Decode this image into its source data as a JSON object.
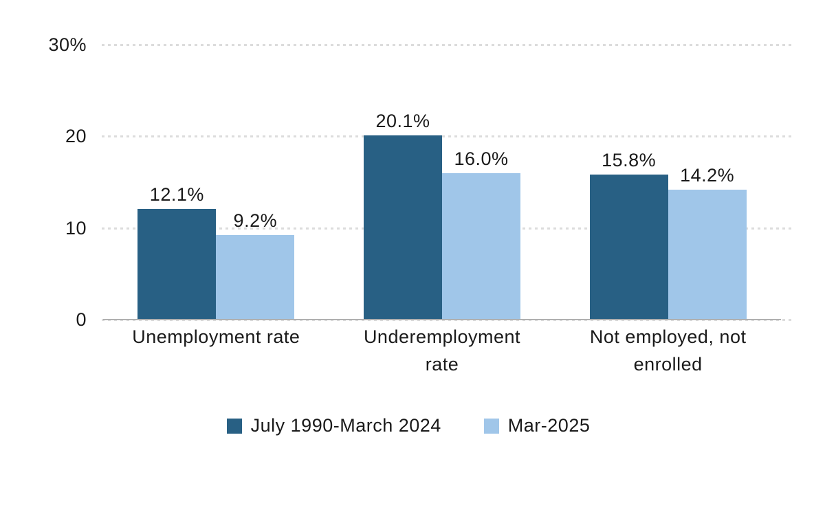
{
  "chart_data": {
    "type": "bar",
    "title": "",
    "xlabel": "",
    "ylabel": "",
    "categories": [
      "Unemployment rate",
      "Underemployment rate",
      "Not employed, not enrolled"
    ],
    "category_lines": [
      [
        "Unemployment rate"
      ],
      [
        "Underemployment",
        "rate"
      ],
      [
        "Not employed, not",
        "enrolled"
      ]
    ],
    "series": [
      {
        "name": "July 1990-March 2024",
        "values": [
          12.1,
          20.1,
          15.8
        ],
        "value_labels": [
          "12.1%",
          "20.1%",
          "15.8%"
        ],
        "color": "#286084"
      },
      {
        "name": "Mar-2025",
        "values": [
          9.2,
          16.0,
          14.2
        ],
        "value_labels": [
          "9.2%",
          "16.0%",
          "14.2%"
        ],
        "color": "#A0C6E9"
      }
    ],
    "ylim": [
      0,
      30
    ],
    "y_ticks": [
      0,
      10,
      20,
      30
    ],
    "y_tick_labels": [
      "0",
      "10",
      "20",
      "30%"
    ],
    "grid": "dotted horizontal gridlines",
    "legend_position": "bottom-center"
  },
  "colors": {
    "series_1": "#286084",
    "series_2": "#A0C6E9",
    "text": "#1A1A1A",
    "gridline": "#DCDCDC",
    "axis_line": "#B0B0B0",
    "background": "#FFFFFF"
  }
}
